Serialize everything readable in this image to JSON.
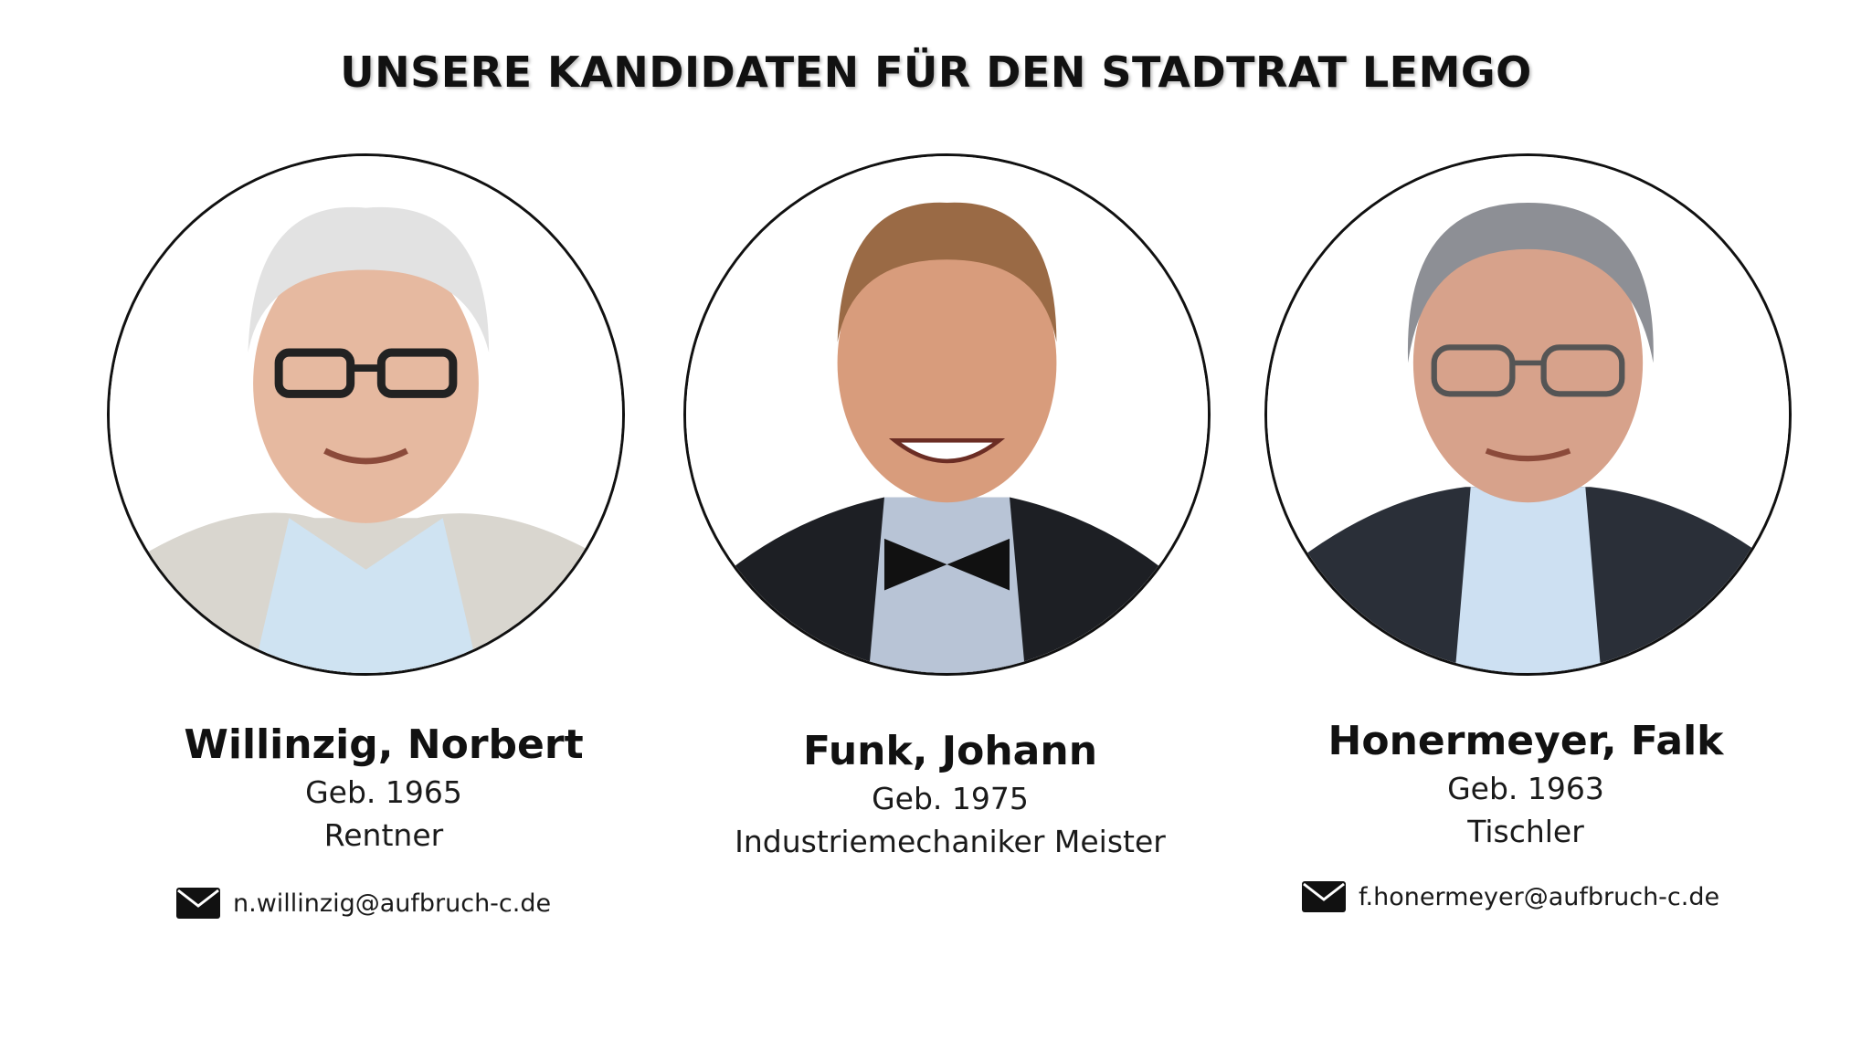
{
  "page": {
    "title": "UNSERE KANDIDATEN FÜR DEN STADTRAT LEMGO"
  },
  "candidates": [
    {
      "name": "Willinzig, Norbert",
      "birth": "Geb. 1965",
      "occupation": "Rentner",
      "email": "n.willinzig@aufbruch-c.de",
      "photo_icon": "portrait-photo"
    },
    {
      "name": "Funk, Johann",
      "birth": "Geb. 1975",
      "occupation": "Industriemechaniker Meister",
      "email": "",
      "photo_icon": "portrait-photo"
    },
    {
      "name": "Honermeyer, Falk",
      "birth": "Geb. 1963",
      "occupation": "Tischler",
      "email": "f.honermeyer@aufbruch-c.de",
      "photo_icon": "portrait-photo"
    }
  ],
  "icons": {
    "email": "envelope-icon"
  },
  "colors": {
    "text": "#111111",
    "background": "#ffffff",
    "circle_border": "#111111"
  }
}
